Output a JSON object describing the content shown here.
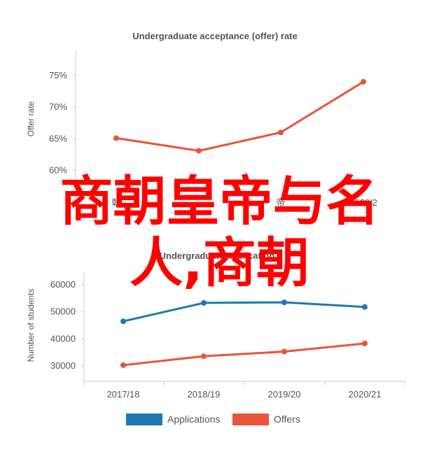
{
  "chart_data": [
    {
      "type": "line",
      "title": "Undergraduate acceptance (offer) rate",
      "ylabel": "Offer rate",
      "xlabel": "",
      "categories": [
        "2017/18",
        "2018/19",
        "2019/20",
        "2020/21"
      ],
      "x_tick_labels_visible": [
        "朝",
        "",
        "帝",
        "2020/2"
      ],
      "y_ticks": [
        "60%",
        "65%",
        "70%",
        "75%"
      ],
      "ylim": [
        59.2,
        76.2
      ],
      "grid": false,
      "series": [
        {
          "values": [
            65.1,
            63.1,
            66.0,
            74.0
          ],
          "color": "#e8553a"
        }
      ]
    },
    {
      "type": "line",
      "title": "Undergraduate application",
      "ylabel": "Number of students",
      "xlabel": "",
      "categories": [
        "2017/18",
        "2018/19",
        "2019/20",
        "2020/21"
      ],
      "y_ticks": [
        "30000",
        "40000",
        "50000",
        "60000"
      ],
      "ylim": [
        26500,
        65000
      ],
      "grid": false,
      "legend_position": "bottom",
      "series": [
        {
          "name": "Applications",
          "values": [
            46500,
            53300,
            53500,
            51800
          ],
          "color": "#1f77b4"
        },
        {
          "name": "Offers",
          "values": [
            30300,
            33600,
            35300,
            38300
          ],
          "color": "#e8553a"
        }
      ]
    }
  ],
  "overlay_text": {
    "line1": "商朝皇帝与名",
    "line2": "人,商朝"
  },
  "colors": {
    "overlay": "#ff0000",
    "axis": "#cccccc",
    "text": "#555555"
  }
}
